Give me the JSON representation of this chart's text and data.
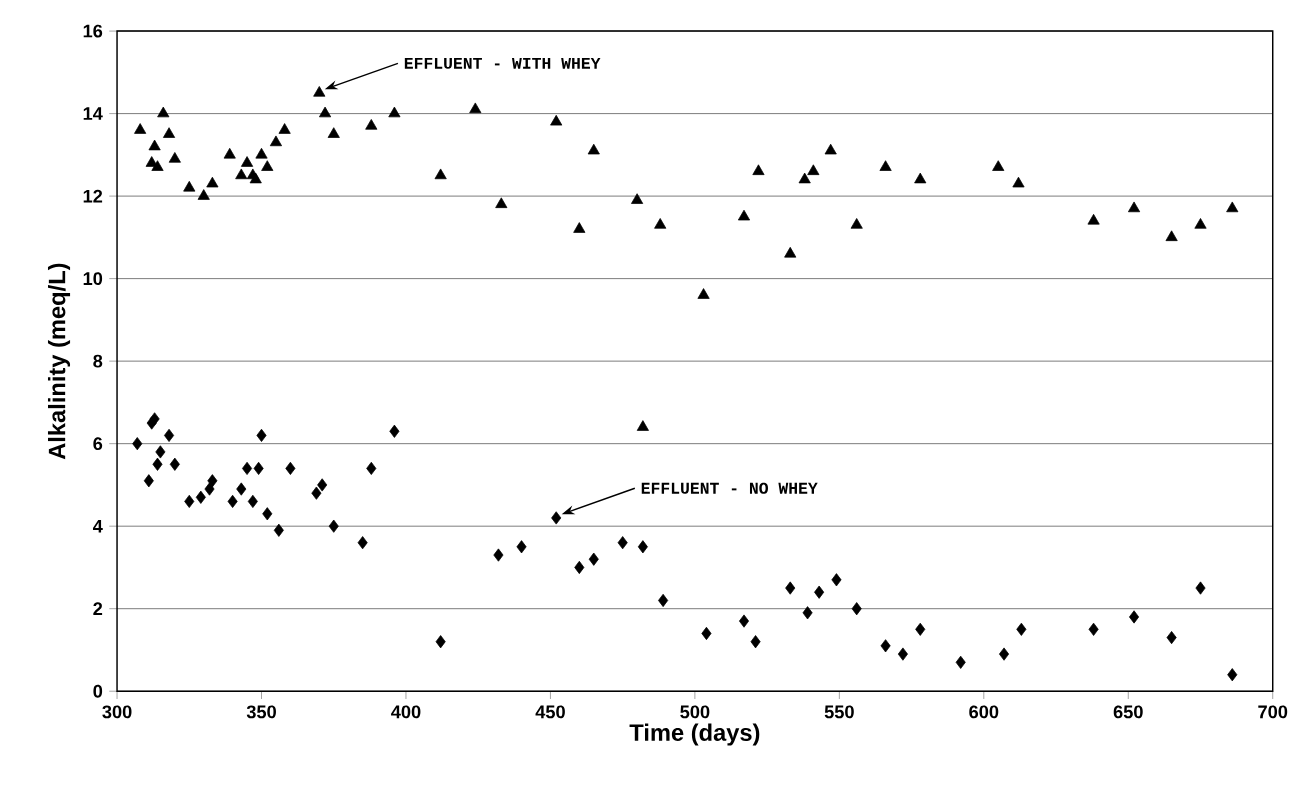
{
  "chart_data": {
    "type": "scatter",
    "xlabel": "Time (days)",
    "ylabel": "Alkalinity (meq/L)",
    "xlim": [
      300,
      700
    ],
    "xticks": [
      300,
      350,
      400,
      450,
      500,
      550,
      600,
      650,
      700
    ],
    "ylim": [
      0,
      16
    ],
    "yticks": [
      0,
      2,
      4,
      6,
      8,
      10,
      12,
      14,
      16
    ],
    "grid": "y",
    "annotations": [
      {
        "text": "EFFLUENT - WITH WHEY",
        "x": 370,
        "y": 14.5
      },
      {
        "text": "EFFLUENT - NO WHEY",
        "x": 452,
        "y": 4.2
      }
    ],
    "series": [
      {
        "color": "#000000",
        "marker": "triangle",
        "x": [
          308,
          312,
          313,
          314,
          316,
          318,
          320,
          325,
          330,
          333,
          339,
          343,
          345,
          347,
          348,
          350,
          352,
          355,
          358,
          370,
          372,
          375,
          388,
          396,
          412,
          424,
          433,
          452,
          460,
          465,
          480,
          482,
          488,
          503,
          517,
          522,
          533,
          538,
          541,
          547,
          556,
          566,
          578,
          605,
          612,
          638,
          652,
          665,
          675,
          686
        ],
        "values": [
          13.6,
          12.8,
          13.2,
          12.7,
          14.0,
          13.5,
          12.9,
          12.2,
          12.0,
          12.3,
          13.0,
          12.5,
          12.8,
          12.5,
          12.4,
          13.0,
          12.7,
          13.3,
          13.6,
          14.5,
          14.0,
          13.5,
          13.7,
          14.0,
          12.5,
          14.1,
          11.8,
          13.8,
          11.2,
          13.1,
          11.9,
          6.4,
          11.3,
          9.6,
          11.5,
          12.6,
          10.6,
          12.4,
          12.6,
          13.1,
          11.3,
          12.7,
          12.4,
          12.7,
          12.3,
          11.4,
          11.7,
          11.0,
          11.3,
          11.7
        ]
      },
      {
        "color": "#000000",
        "marker": "diamond",
        "x": [
          307,
          311,
          312,
          313,
          314,
          315,
          318,
          320,
          325,
          329,
          332,
          333,
          340,
          343,
          345,
          347,
          349,
          350,
          352,
          356,
          360,
          369,
          371,
          375,
          385,
          388,
          396,
          412,
          432,
          440,
          452,
          460,
          465,
          475,
          482,
          489,
          504,
          517,
          521,
          533,
          539,
          543,
          549,
          556,
          566,
          572,
          578,
          592,
          607,
          613,
          638,
          652,
          665,
          675,
          686
        ],
        "values": [
          6.0,
          5.1,
          6.5,
          6.6,
          5.5,
          5.8,
          6.2,
          5.5,
          4.6,
          4.7,
          4.9,
          5.1,
          4.6,
          4.9,
          5.4,
          4.6,
          5.4,
          6.2,
          4.3,
          3.9,
          5.4,
          4.8,
          5.0,
          4.0,
          3.6,
          5.4,
          6.3,
          1.2,
          3.3,
          3.5,
          4.2,
          3.0,
          3.2,
          3.6,
          3.5,
          2.2,
          1.4,
          1.7,
          1.2,
          2.5,
          1.9,
          2.4,
          2.7,
          2.0,
          1.1,
          0.9,
          1.5,
          0.7,
          0.9,
          1.5,
          1.5,
          1.8,
          1.3,
          2.5,
          0.4
        ]
      }
    ]
  }
}
